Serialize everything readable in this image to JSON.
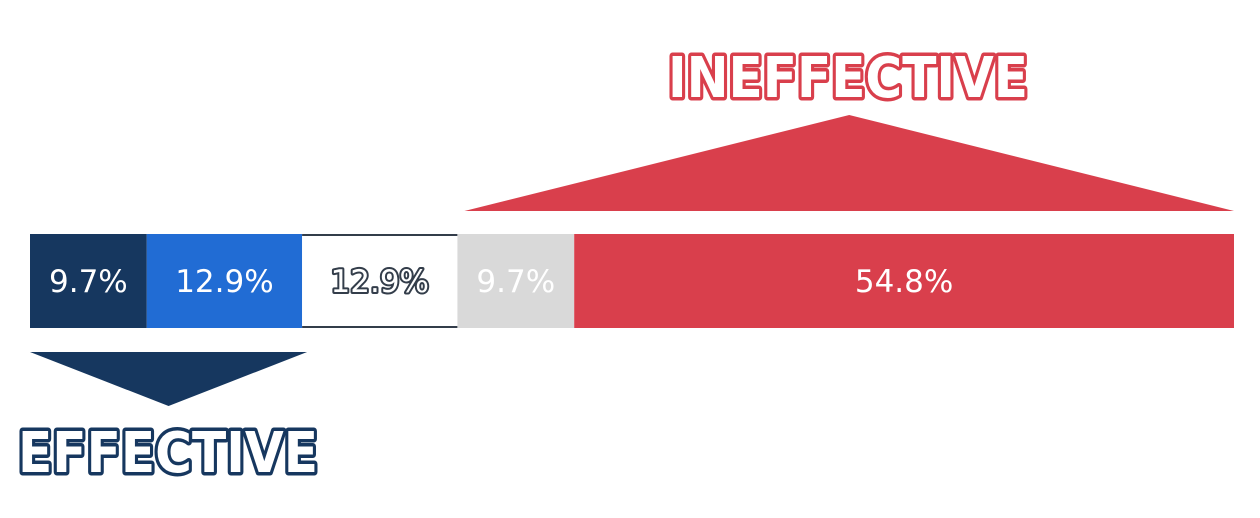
{
  "chart_data": {
    "type": "bar",
    "orientation": "horizontal",
    "stacked": true,
    "total": 100,
    "segments": [
      {
        "label": "9.7%",
        "value": 9.7,
        "color": "#16375f",
        "text_color": "#ffffff",
        "outlined_text": false
      },
      {
        "label": "12.9%",
        "value": 12.9,
        "color": "#216cd4",
        "text_color": "#ffffff",
        "outlined_text": false
      },
      {
        "label": "12.9%",
        "value": 12.9,
        "color": "#ffffff",
        "text_color": "#ffffff",
        "outlined_text": true,
        "outline_color": "#333d4a"
      },
      {
        "label": "9.7%",
        "value": 9.7,
        "color": "#d9d9d9",
        "text_color": "#ffffff",
        "outlined_text": false
      },
      {
        "label": "54.8%",
        "value": 54.8,
        "color": "#d93f4c",
        "text_color": "#ffffff",
        "outlined_text": false
      }
    ],
    "groups": [
      {
        "label": "EFFECTIVE",
        "segments": [
          0,
          1
        ],
        "position": "below",
        "color": "#16375f"
      },
      {
        "label": "INEFFECTIVE",
        "segments": [
          3,
          4
        ],
        "position": "above",
        "color": "#d93f4c"
      }
    ],
    "grid": false,
    "legend": "none"
  }
}
